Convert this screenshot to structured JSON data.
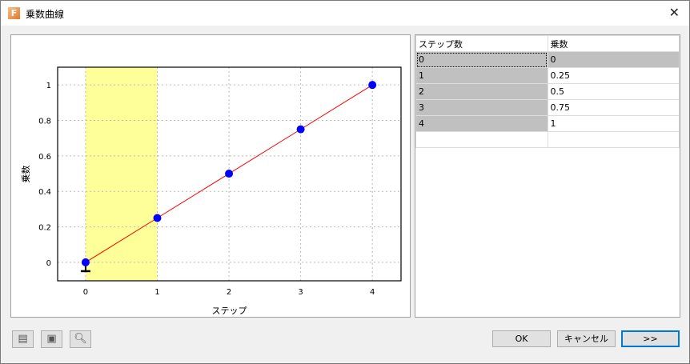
{
  "window": {
    "title": "乗数曲線",
    "close_icon": "close-icon"
  },
  "chart_data": {
    "type": "line",
    "xlabel": "ステップ",
    "ylabel": "乗数",
    "x": [
      0,
      1,
      2,
      3,
      4
    ],
    "y": [
      0,
      0.25,
      0.5,
      0.75,
      1
    ],
    "xlim": [
      -0.39,
      4.4
    ],
    "ylim": [
      -0.104,
      1.1
    ],
    "xticks": [
      "0",
      "1",
      "2",
      "3",
      "4"
    ],
    "yticks": [
      "0",
      "0.2",
      "0.4",
      "0.6",
      "0.8",
      "1"
    ],
    "highlight_x_range": [
      0,
      1
    ],
    "grid": true,
    "selected_point": 0,
    "colors": {
      "line": "#ff0000",
      "marker": "#0000ff",
      "highlight": "#ffff99"
    }
  },
  "table": {
    "headers": [
      "ステップ数",
      "乗数"
    ],
    "rows": [
      [
        "0",
        "0"
      ],
      [
        "1",
        "0.25"
      ],
      [
        "2",
        "0.5"
      ],
      [
        "3",
        "0.75"
      ],
      [
        "4",
        "1"
      ],
      [
        "",
        ""
      ]
    ]
  },
  "buttons": {
    "ok": "OK",
    "cancel": "キャンセル",
    "more": ">>"
  },
  "icons": [
    "table-icon",
    "save-icon",
    "zoom-icon"
  ]
}
